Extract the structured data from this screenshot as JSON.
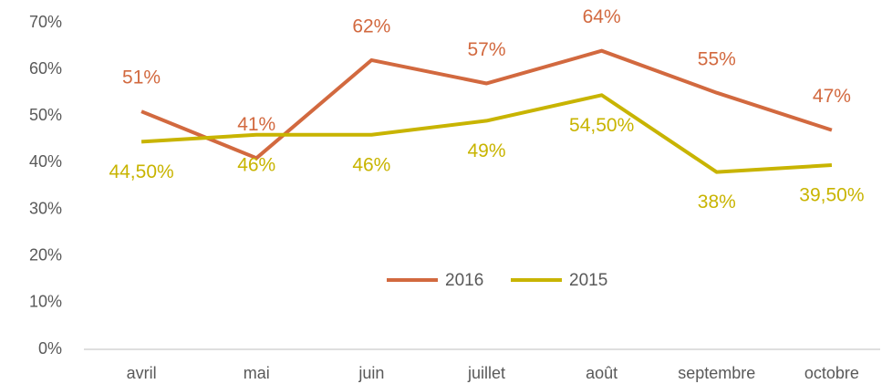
{
  "chart_data": {
    "type": "line",
    "categories": [
      "avril",
      "mai",
      "juin",
      "juillet",
      "août",
      "septembre",
      "octobre"
    ],
    "series": [
      {
        "name": "2016",
        "color": "#d2693f",
        "values": [
          51,
          41,
          62,
          57,
          64,
          55,
          47
        ],
        "value_labels": [
          "51%",
          "41%",
          "62%",
          "57%",
          "64%",
          "55%",
          "47%"
        ]
      },
      {
        "name": "2015",
        "color": "#c8b400",
        "values": [
          44.5,
          46,
          46,
          49,
          54.5,
          38,
          39.5
        ],
        "value_labels": [
          "44,50%",
          "46%",
          "46%",
          "49%",
          "54,50%",
          "38%",
          "39,50%"
        ]
      }
    ],
    "ylim": [
      0,
      70
    ],
    "yticks": [
      {
        "value": 0,
        "label": "0%"
      },
      {
        "value": 10,
        "label": "10%"
      },
      {
        "value": 20,
        "label": "20%"
      },
      {
        "value": 30,
        "label": "30%"
      },
      {
        "value": 40,
        "label": "40%"
      },
      {
        "value": 50,
        "label": "50%"
      },
      {
        "value": 60,
        "label": "60%"
      },
      {
        "value": 70,
        "label": "70%"
      }
    ],
    "legend": "center"
  }
}
